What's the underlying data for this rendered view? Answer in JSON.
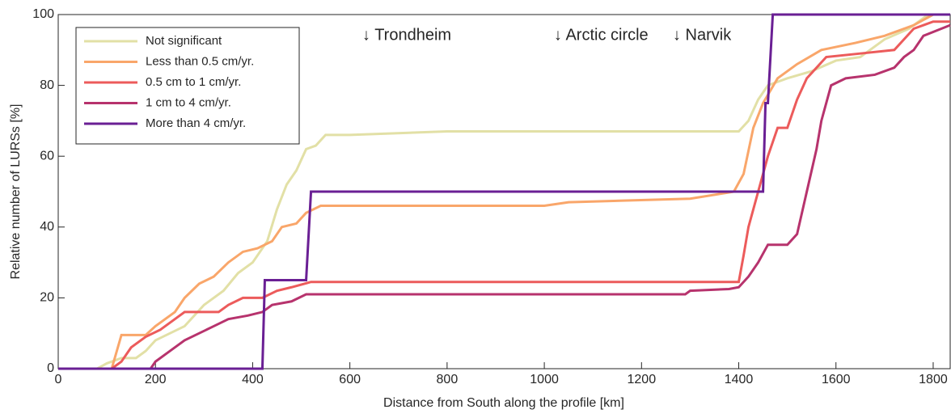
{
  "chart_data": {
    "type": "line",
    "xlabel": "Distance from South along the profile [km]",
    "ylabel": "Relative number of LURSs [%]",
    "annotations": [
      "↓ Trondheim",
      "↓ Arctic circle",
      "↓ Narvik"
    ],
    "xlim": [
      0,
      1835
    ],
    "ylim": [
      0,
      100
    ],
    "xticks": [
      0,
      200,
      400,
      600,
      800,
      1000,
      1200,
      1400,
      1600,
      1800
    ],
    "yticks": [
      0,
      20,
      40,
      60,
      80,
      100
    ],
    "grid": false,
    "legend": "upper left",
    "series": [
      {
        "name": "Not significant",
        "color": "#e2e0a6",
        "x": [
          0,
          80,
          100,
          130,
          160,
          180,
          200,
          230,
          260,
          300,
          340,
          370,
          400,
          430,
          450,
          470,
          490,
          510,
          530,
          550,
          600,
          800,
          1400,
          1420,
          1440,
          1460,
          1500,
          1550,
          1600,
          1650,
          1700,
          1750,
          1790,
          1835
        ],
        "values": [
          0,
          0,
          1.5,
          3,
          3,
          5,
          8,
          10,
          12,
          18,
          22,
          27,
          30,
          36,
          45,
          52,
          56,
          62,
          63,
          66,
          66,
          67,
          67,
          70,
          76,
          80,
          82,
          84,
          87,
          88,
          93,
          96,
          100,
          100
        ]
      },
      {
        "name": "Less than 0.5 cm/yr.",
        "color": "#f9a66a",
        "x": [
          0,
          110,
          130,
          180,
          200,
          240,
          260,
          290,
          320,
          350,
          380,
          410,
          440,
          460,
          490,
          510,
          540,
          1000,
          1050,
          1300,
          1390,
          1410,
          1430,
          1450,
          1480,
          1520,
          1570,
          1640,
          1700,
          1760,
          1800,
          1835
        ],
        "values": [
          0,
          0,
          9.5,
          9.5,
          12,
          16,
          20,
          24,
          26,
          30,
          33,
          34,
          36,
          40,
          41,
          44,
          46,
          46,
          47,
          48,
          50,
          55,
          68,
          75,
          82,
          86,
          90,
          92,
          94,
          97,
          100,
          100
        ]
      },
      {
        "name": "0.5 cm to 1 cm/yr.",
        "color": "#ec5b5b",
        "x": [
          0,
          110,
          130,
          150,
          180,
          210,
          240,
          260,
          330,
          350,
          380,
          420,
          450,
          480,
          520,
          1400,
          1410,
          1420,
          1440,
          1460,
          1480,
          1500,
          1520,
          1540,
          1580,
          1650,
          1720,
          1760,
          1800,
          1835
        ],
        "values": [
          0,
          0,
          2,
          6,
          9,
          11,
          14,
          16,
          16,
          18,
          20,
          20,
          22,
          23,
          24.5,
          24.5,
          32,
          40,
          50,
          60,
          68,
          68,
          76,
          82,
          88,
          89,
          90,
          96,
          98,
          98
        ]
      },
      {
        "name": "1 cm to 4 cm/yr.",
        "color": "#b7336d",
        "x": [
          0,
          190,
          200,
          230,
          260,
          290,
          320,
          350,
          390,
          420,
          440,
          480,
          510,
          1290,
          1300,
          1380,
          1400,
          1420,
          1440,
          1460,
          1500,
          1520,
          1540,
          1560,
          1570,
          1590,
          1620,
          1680,
          1720,
          1740,
          1760,
          1780,
          1835
        ],
        "values": [
          0,
          0,
          2,
          5,
          8,
          10,
          12,
          14,
          15,
          16,
          18,
          19,
          21,
          21,
          22,
          22.5,
          23,
          26,
          30,
          35,
          35,
          38,
          50,
          62,
          70,
          80,
          82,
          83,
          85,
          88,
          90,
          94,
          97
        ]
      },
      {
        "name": "More than 4 cm/yr.",
        "color": "#6a1f94",
        "x": [
          0,
          420,
          425,
          510,
          520,
          1450,
          1455,
          1460,
          1470,
          1835
        ],
        "values": [
          0,
          0,
          25,
          25,
          50,
          50,
          75,
          75,
          100,
          100
        ]
      }
    ]
  }
}
